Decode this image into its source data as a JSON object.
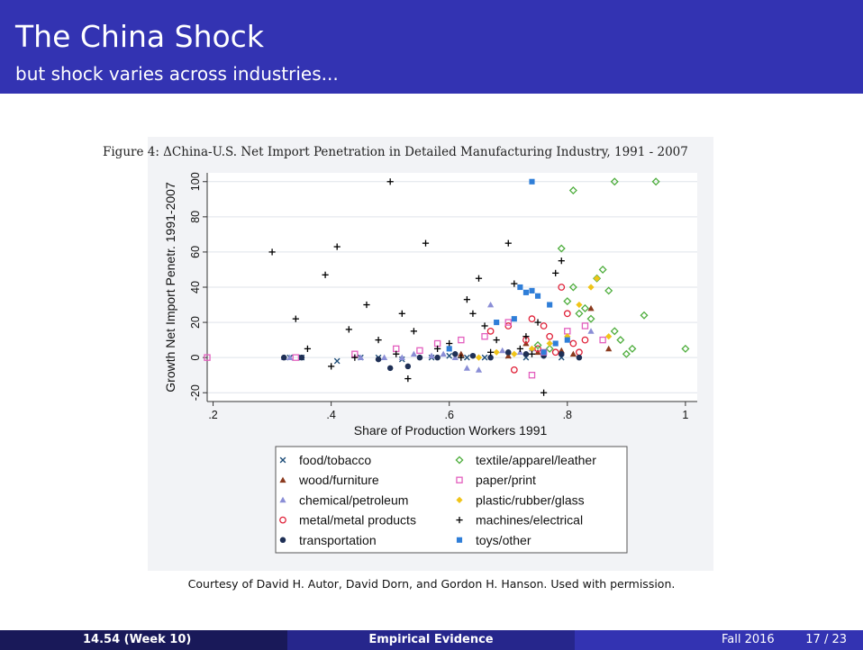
{
  "slide": {
    "title": "The China Shock",
    "subtitle": "but shock varies across industries..."
  },
  "caption": "Courtesy of David H. Autor, David Dorn, and Gordon H. Hanson. Used with permission.",
  "footer": {
    "left": "14.54  (Week 10)",
    "center": "Empirical Evidence",
    "date": "Fall 2016",
    "page": "17 / 23"
  },
  "chart_data": {
    "type": "scatter",
    "title": "Figure 4: ΔChina-U.S. Net Import Penetration in Detailed Manufacturing Industry, 1991 - 2007",
    "xlabel": "Share of Production Workers 1991",
    "ylabel": "Growth Net Import Penetr. 1991-2007",
    "xlim": [
      0.19,
      1.02
    ],
    "ylim": [
      -25,
      105
    ],
    "xticks": [
      ".2",
      ".4",
      ".6",
      ".8",
      "1"
    ],
    "xtick_values": [
      0.2,
      0.4,
      0.6,
      0.8,
      1.0
    ],
    "yticks": [
      "-20",
      "0",
      "20",
      "40",
      "60",
      "80",
      "100"
    ],
    "ytick_values": [
      -20,
      0,
      20,
      40,
      60,
      80,
      100
    ],
    "grid": true,
    "legend_placement": "bottom",
    "series": [
      {
        "name": "food/tobacco",
        "marker": "x",
        "color": "#1f4e79",
        "x": [
          0.33,
          0.35,
          0.41,
          0.45,
          0.48,
          0.52,
          0.57,
          0.6,
          0.63,
          0.66,
          0.7,
          0.73,
          0.76,
          0.79
        ],
        "y": [
          0,
          0,
          -2,
          0,
          0,
          -1,
          0,
          1,
          0,
          0,
          1,
          0,
          2,
          0
        ]
      },
      {
        "name": "wood/furniture",
        "marker": "triangle",
        "color": "#8b3a1e",
        "x": [
          0.62,
          0.7,
          0.73,
          0.75,
          0.79,
          0.81,
          0.84,
          0.87
        ],
        "y": [
          2,
          1,
          8,
          3,
          4,
          2,
          28,
          5
        ]
      },
      {
        "name": "chemical/petroleum",
        "marker": "triangle",
        "color": "#8a8ed6",
        "x": [
          0.32,
          0.33,
          0.45,
          0.49,
          0.52,
          0.54,
          0.57,
          0.59,
          0.61,
          0.63,
          0.65,
          0.67,
          0.69,
          0.72,
          0.74,
          0.84
        ],
        "y": [
          0,
          0,
          0,
          0,
          0,
          2,
          1,
          2,
          0,
          -6,
          -7,
          30,
          4,
          3,
          5,
          15
        ]
      },
      {
        "name": "metal/metal products",
        "marker": "circle-open",
        "color": "#e0233a",
        "x": [
          0.67,
          0.7,
          0.71,
          0.73,
          0.74,
          0.75,
          0.76,
          0.77,
          0.78,
          0.79,
          0.8,
          0.81,
          0.82,
          0.83
        ],
        "y": [
          15,
          18,
          -7,
          10,
          22,
          5,
          18,
          12,
          3,
          40,
          25,
          8,
          3,
          10
        ]
      },
      {
        "name": "transportation",
        "marker": "circle",
        "color": "#1e2f55",
        "x": [
          0.32,
          0.35,
          0.48,
          0.5,
          0.53,
          0.55,
          0.58,
          0.61,
          0.64,
          0.67,
          0.7,
          0.73,
          0.76,
          0.79,
          0.82
        ],
        "y": [
          0,
          0,
          -1,
          -6,
          -5,
          0,
          0,
          2,
          1,
          0,
          3,
          2,
          1,
          2,
          0
        ]
      },
      {
        "name": "textile/apparel/leather",
        "marker": "diamond-open",
        "color": "#4fae3e",
        "x": [
          0.75,
          0.77,
          0.79,
          0.8,
          0.81,
          0.82,
          0.83,
          0.84,
          0.85,
          0.86,
          0.87,
          0.88,
          0.89,
          0.9,
          0.91,
          0.93,
          1.0,
          0.81,
          0.88,
          0.95
        ],
        "y": [
          7,
          5,
          62,
          32,
          40,
          25,
          28,
          22,
          45,
          50,
          38,
          15,
          10,
          2,
          5,
          24,
          5,
          95,
          100,
          100
        ]
      },
      {
        "name": "paper/print",
        "marker": "square-open",
        "color": "#e35fbe",
        "x": [
          0.19,
          0.34,
          0.44,
          0.51,
          0.55,
          0.58,
          0.62,
          0.66,
          0.7,
          0.74,
          0.76,
          0.8,
          0.83,
          0.86
        ],
        "y": [
          0,
          0,
          2,
          5,
          4,
          8,
          10,
          12,
          20,
          -10,
          3,
          15,
          18,
          10
        ]
      },
      {
        "name": "plastic/rubber/glass",
        "marker": "diamond",
        "color": "#f0c419",
        "x": [
          0.65,
          0.68,
          0.71,
          0.74,
          0.77,
          0.8,
          0.82,
          0.84,
          0.85,
          0.87
        ],
        "y": [
          0,
          3,
          2,
          5,
          8,
          12,
          30,
          40,
          45,
          12
        ]
      },
      {
        "name": "machines/electrical",
        "marker": "plus",
        "color": "#000000",
        "x": [
          0.3,
          0.34,
          0.36,
          0.39,
          0.4,
          0.41,
          0.43,
          0.44,
          0.46,
          0.48,
          0.5,
          0.51,
          0.52,
          0.53,
          0.54,
          0.56,
          0.58,
          0.6,
          0.62,
          0.63,
          0.64,
          0.65,
          0.66,
          0.67,
          0.68,
          0.7,
          0.71,
          0.72,
          0.73,
          0.74,
          0.75,
          0.76,
          0.78,
          0.79
        ],
        "y": [
          60,
          22,
          5,
          47,
          -5,
          63,
          16,
          0,
          30,
          10,
          100,
          2,
          25,
          -12,
          15,
          65,
          5,
          8,
          0,
          33,
          25,
          45,
          18,
          3,
          10,
          65,
          42,
          5,
          12,
          2,
          20,
          -20,
          48,
          55
        ]
      },
      {
        "name": "toys/other",
        "marker": "square",
        "color": "#2f7ed8",
        "x": [
          0.6,
          0.68,
          0.71,
          0.72,
          0.73,
          0.74,
          0.75,
          0.76,
          0.77,
          0.78,
          0.8,
          0.74
        ],
        "y": [
          5,
          20,
          22,
          40,
          37,
          38,
          35,
          3,
          30,
          8,
          10,
          100
        ]
      }
    ]
  }
}
